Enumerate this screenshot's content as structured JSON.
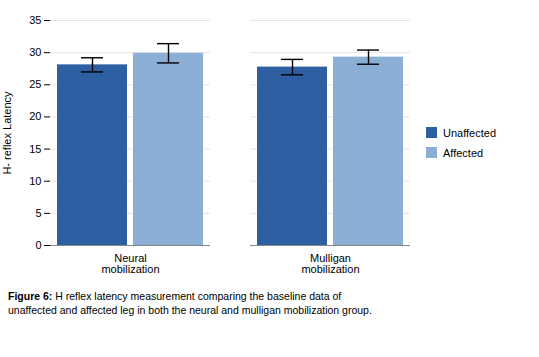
{
  "chart_data": {
    "type": "bar",
    "categories": [
      "Neural\nmobilization",
      "Mulligan\nmobilization"
    ],
    "series": [
      {
        "name": "Unaffected",
        "color": "#2E5FA3",
        "values": [
          28.1,
          27.75
        ],
        "errors": [
          1.1,
          1.2
        ]
      },
      {
        "name": "Affected",
        "color": "#8BAFD4",
        "values": [
          29.9,
          29.3
        ],
        "errors": [
          1.5,
          1.1
        ]
      }
    ],
    "ylabel": "H- reflex Latency",
    "ylim": [
      0,
      35
    ],
    "yticks": [
      0,
      5,
      10,
      15,
      20,
      25,
      30,
      35
    ],
    "grid": true,
    "legend": "right",
    "caption": "Figure 6: H reflex latency measurement comparing the baseline data of\nunaffected and affected leg in both the neural and mulligan mobilization group."
  }
}
